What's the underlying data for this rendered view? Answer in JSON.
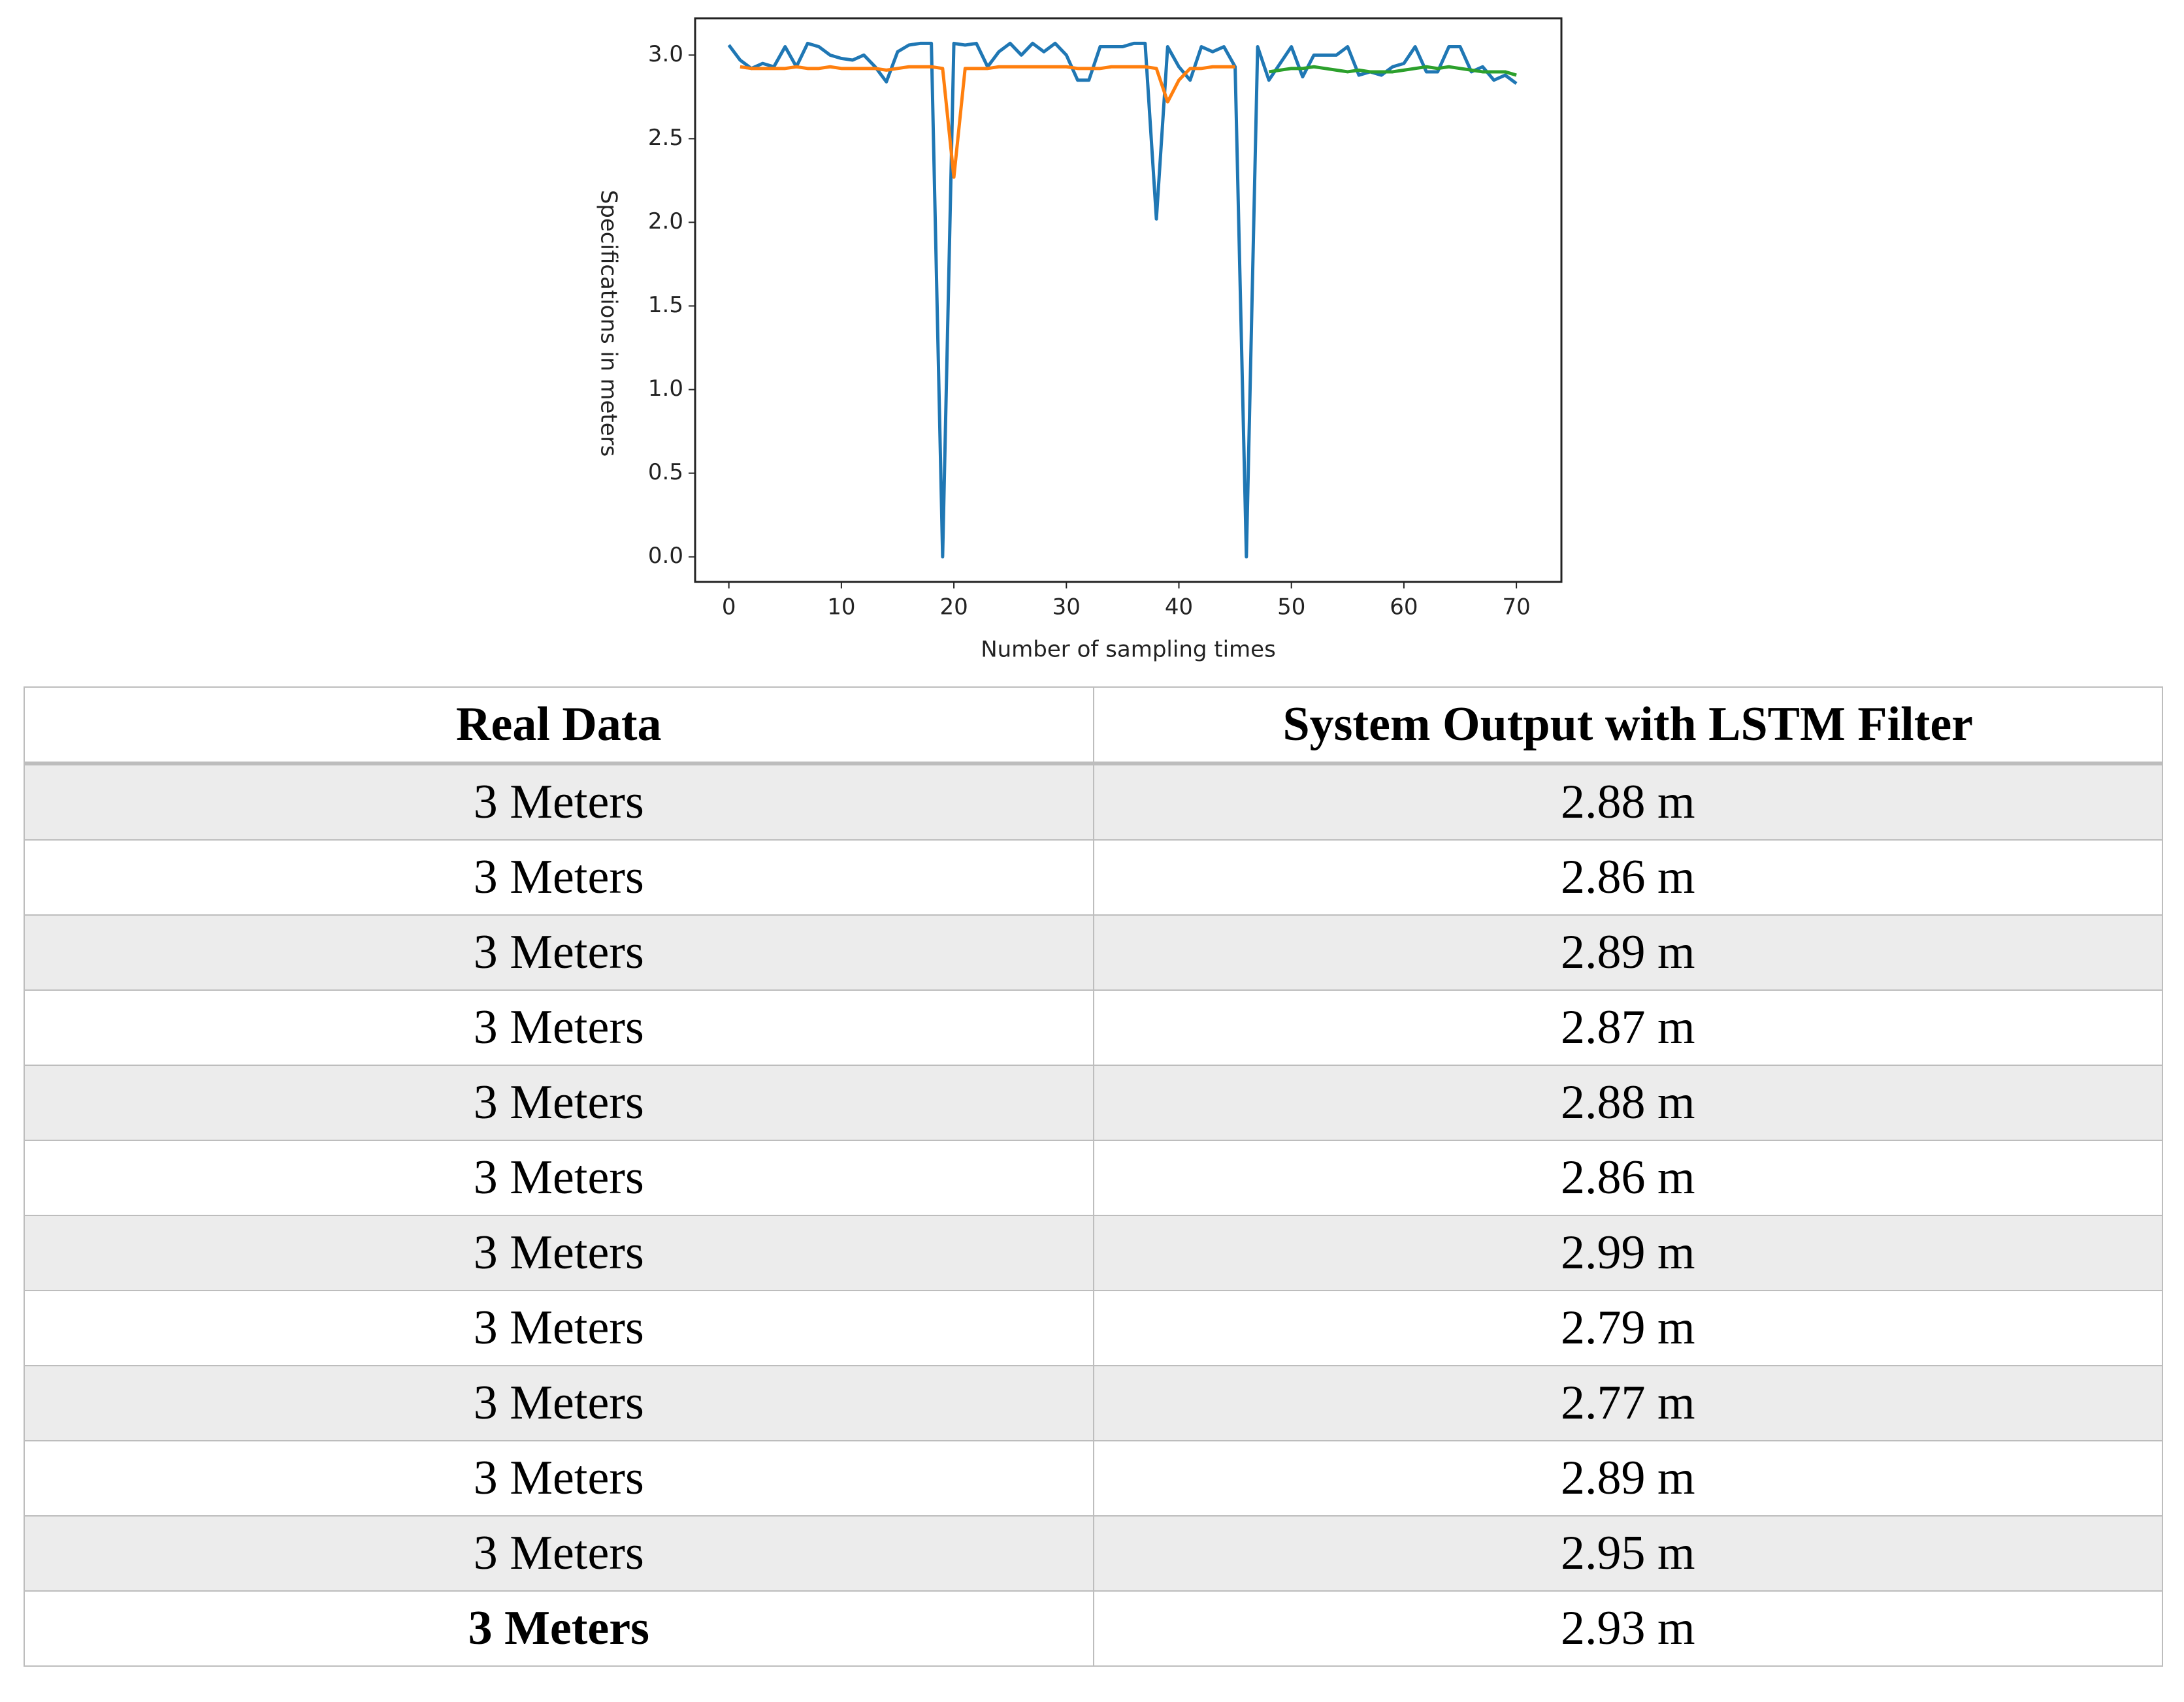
{
  "chart_data": {
    "type": "line",
    "x": [
      0,
      1,
      2,
      3,
      4,
      5,
      6,
      7,
      8,
      9,
      10,
      11,
      12,
      13,
      14,
      15,
      16,
      17,
      18,
      19,
      20,
      21,
      22,
      23,
      24,
      25,
      26,
      27,
      28,
      29,
      30,
      31,
      32,
      33,
      34,
      35,
      36,
      37,
      38,
      39,
      40,
      41,
      42,
      43,
      44,
      45,
      46,
      47,
      48,
      49,
      50,
      51,
      52,
      53,
      54,
      55,
      56,
      57,
      58,
      59,
      60,
      61,
      62,
      63,
      64,
      65,
      66,
      67,
      68,
      69,
      70
    ],
    "series": [
      {
        "color": "#1f77b4",
        "values": [
          3.06,
          2.97,
          2.92,
          2.95,
          2.93,
          3.05,
          2.93,
          3.07,
          3.05,
          3.0,
          2.98,
          2.97,
          3.0,
          2.93,
          2.84,
          3.02,
          3.06,
          3.07,
          3.07,
          0.0,
          3.07,
          3.06,
          3.07,
          2.93,
          3.02,
          3.07,
          3.0,
          3.07,
          3.02,
          3.07,
          3.0,
          2.85,
          2.85,
          3.05,
          3.05,
          3.05,
          3.07,
          3.07,
          2.02,
          3.05,
          2.93,
          2.85,
          3.05,
          3.02,
          3.05,
          2.93,
          0.0,
          3.05,
          2.85,
          2.95,
          3.05,
          2.87,
          3.0,
          3.0,
          3.0,
          3.05,
          2.88,
          2.9,
          2.88,
          2.93,
          2.95,
          3.05,
          2.9,
          2.9,
          3.05,
          3.05,
          2.9,
          2.93,
          2.85,
          2.88,
          2.83
        ]
      },
      {
        "color": "#ff7f0e",
        "values": [
          null,
          2.93,
          2.92,
          2.92,
          2.92,
          2.92,
          2.93,
          2.92,
          2.92,
          2.93,
          2.92,
          2.92,
          2.92,
          2.92,
          2.91,
          2.92,
          2.93,
          2.93,
          2.93,
          2.92,
          2.27,
          2.92,
          2.92,
          2.92,
          2.93,
          2.93,
          2.93,
          2.93,
          2.93,
          2.93,
          2.93,
          2.92,
          2.92,
          2.92,
          2.93,
          2.93,
          2.93,
          2.93,
          2.92,
          2.72,
          2.85,
          2.92,
          2.92,
          2.93,
          2.93,
          2.93,
          null,
          null,
          null,
          null,
          null,
          null,
          null,
          null,
          null,
          null,
          null,
          null,
          null,
          null,
          null,
          null,
          null,
          null,
          null,
          null,
          null,
          null,
          null,
          null,
          null
        ]
      },
      {
        "color": "#2ca02c",
        "values": [
          null,
          null,
          null,
          null,
          null,
          null,
          null,
          null,
          null,
          null,
          null,
          null,
          null,
          null,
          null,
          null,
          null,
          null,
          null,
          null,
          null,
          null,
          null,
          null,
          null,
          null,
          null,
          null,
          null,
          null,
          null,
          null,
          null,
          null,
          null,
          null,
          null,
          null,
          null,
          null,
          null,
          null,
          null,
          null,
          null,
          null,
          null,
          null,
          2.9,
          2.91,
          2.92,
          2.92,
          2.93,
          2.92,
          2.91,
          2.9,
          2.91,
          2.9,
          2.9,
          2.9,
          2.91,
          2.92,
          2.93,
          2.92,
          2.93,
          2.92,
          2.91,
          2.9,
          2.9,
          2.9,
          2.88
        ]
      }
    ],
    "x_label": "Number of sampling times",
    "y_label": "Specifications in meters",
    "xlim": [
      -3,
      74
    ],
    "ylim": [
      -0.15,
      3.22
    ],
    "xticks": [
      0,
      10,
      20,
      30,
      40,
      50,
      60,
      70
    ],
    "yticks": [
      {
        "value": 0,
        "label": "0.0"
      },
      0.5,
      {
        "value": 1,
        "label": "1.0"
      },
      1.5,
      {
        "value": 2,
        "label": "2.0"
      },
      2.5,
      {
        "value": 3,
        "label": "3.0"
      }
    ]
  },
  "table": {
    "header": [
      "Real Data",
      "System Output with LSTM Filter"
    ],
    "rows": [
      [
        "3 Meters",
        "2.88 m"
      ],
      [
        "3 Meters",
        "2.86 m"
      ],
      [
        "3 Meters",
        "2.89 m"
      ],
      [
        "3 Meters",
        "2.87 m"
      ],
      [
        "3 Meters",
        "2.88 m"
      ],
      [
        "3 Meters",
        "2.86 m"
      ],
      [
        "3 Meters",
        "2.99 m"
      ],
      [
        "3 Meters",
        "2.79 m"
      ],
      [
        "3 Meters",
        "2.77 m"
      ],
      [
        "3 Meters",
        "2.89 m"
      ],
      [
        "3 Meters",
        "2.95 m"
      ],
      [
        "3 Meters",
        "2.93 m"
      ]
    ]
  }
}
